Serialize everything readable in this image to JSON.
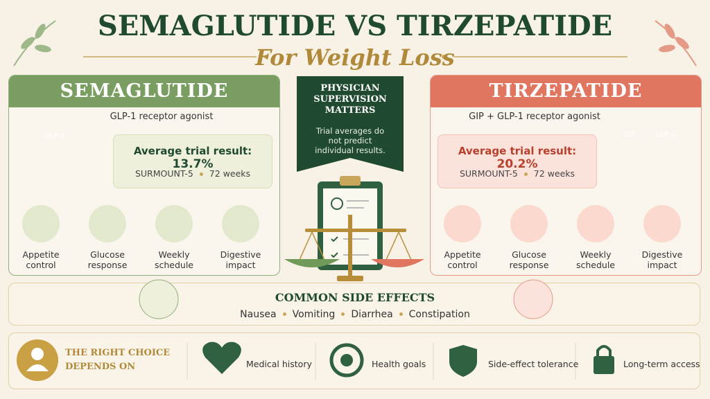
{
  "header": {
    "title": "SEMAGLUTIDE VS TIRZEPATIDE",
    "subtitle": "For Weight Loss"
  },
  "left": {
    "title": "SEMAGLUTIDE",
    "mechanism": "GLP-1 receptor agonist",
    "badges": [
      "GLP-1"
    ],
    "result_label": "Average trial result:",
    "result_value": "13.7%",
    "trial": "SURMOUNT-5",
    "duration": "72 weeks",
    "features": [
      "Appetite control",
      "Glucose response",
      "Weekly schedule",
      "Digestive impact"
    ]
  },
  "center": {
    "title": "PHYSICIAN SUPERVISION MATTERS",
    "note": "Trial averages do not predict individual results."
  },
  "right": {
    "title": "TIRZEPATIDE",
    "mechanism": "GIP + GLP-1 receptor agonist",
    "badges": [
      "GIP",
      "GLP-1"
    ],
    "result_label": "Average trial result:",
    "result_value": "20.2%",
    "trial": "SURMOUNT-5",
    "duration": "72 weeks",
    "features": [
      "Appetite control",
      "Glucose response",
      "Weekly schedule",
      "Digestive impact"
    ]
  },
  "side_effects": {
    "title": "COMMON SIDE EFFECTS",
    "items": [
      "Nausea",
      "Vomiting",
      "Diarrhea",
      "Constipation"
    ]
  },
  "footer": {
    "title": "THE RIGHT CHOICE DEPENDS ON",
    "factors": [
      "Medical history",
      "Health goals",
      "Side-effect tolerance",
      "Long-term access"
    ]
  }
}
